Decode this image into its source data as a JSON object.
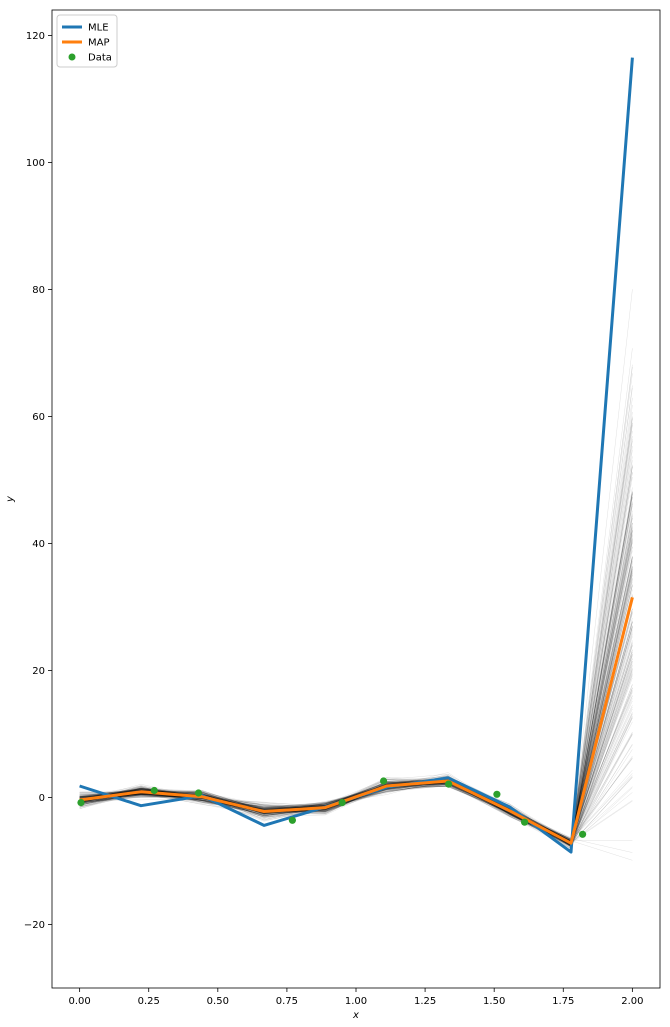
{
  "chart_data": {
    "type": "line",
    "title": "",
    "xlabel": "x",
    "ylabel": "y",
    "xlim": [
      -0.1,
      2.1
    ],
    "ylim": [
      -30,
      124
    ],
    "xticks": [
      0.0,
      0.25,
      0.5,
      0.75,
      1.0,
      1.25,
      1.5,
      1.75,
      2.0
    ],
    "xtick_labels": [
      "0.00",
      "0.25",
      "0.50",
      "0.75",
      "1.00",
      "1.25",
      "1.50",
      "1.75",
      "2.00"
    ],
    "yticks": [
      -20,
      0,
      20,
      40,
      60,
      80,
      100,
      120
    ],
    "ytick_labels": [
      "−20",
      "0",
      "20",
      "40",
      "60",
      "80",
      "100",
      "120"
    ],
    "grid": false,
    "legend": "top-left",
    "x": [
      0.0,
      0.222,
      0.444,
      0.667,
      0.889,
      1.111,
      1.333,
      1.556,
      1.778,
      2.0
    ],
    "series": [
      {
        "name": "MLE",
        "kind": "line",
        "color": "#1f77b4",
        "y": [
          1.8,
          -1.3,
          0.3,
          -4.4,
          -1.5,
          1.6,
          3.1,
          -1.5,
          -8.6,
          116.5
        ]
      },
      {
        "name": "MAP",
        "kind": "line",
        "color": "#ff7f0e",
        "y": [
          -0.4,
          0.9,
          0.1,
          -2.2,
          -1.6,
          1.8,
          2.6,
          -2.1,
          -7.2,
          31.5
        ]
      },
      {
        "name": "Data",
        "kind": "scatter",
        "color": "#2ca02c",
        "x": [
          0.005,
          0.27,
          0.43,
          0.77,
          0.95,
          1.1,
          1.335,
          1.51,
          1.61,
          1.82
        ],
        "y": [
          -0.8,
          1.1,
          0.7,
          -3.6,
          -0.8,
          2.6,
          2.1,
          0.5,
          -3.9,
          -5.8
        ]
      }
    ],
    "samples": {
      "count": 220,
      "color": "#000000",
      "base": [
        -0.4,
        0.9,
        0.1,
        -2.2,
        -1.6,
        1.8,
        2.6,
        -2.1,
        -7.2,
        31.5
      ],
      "spread": [
        1.2,
        1.0,
        1.1,
        1.3,
        1.0,
        1.0,
        1.0,
        1.0,
        1.0,
        24.0
      ]
    }
  }
}
